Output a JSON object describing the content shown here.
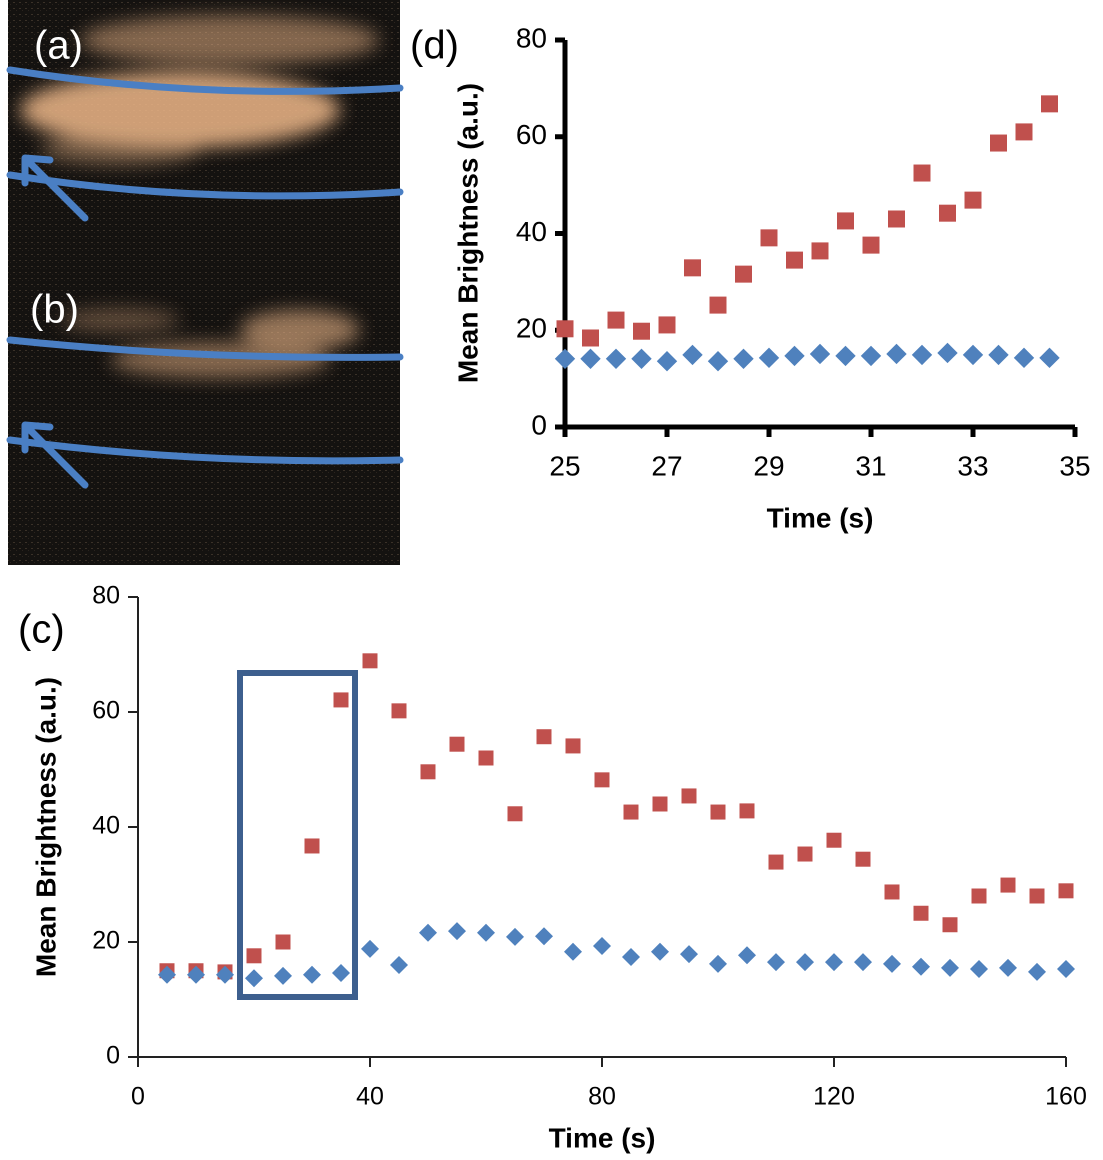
{
  "image": {
    "labels": [
      "(a)",
      "(b)"
    ]
  },
  "chart_data": [
    {
      "type": "scatter",
      "label": "(d)",
      "xlabel": "Time (s)",
      "ylabel": "Mean Brightness (a.u.)",
      "xlim": [
        25,
        35
      ],
      "xticks": [
        25,
        27,
        29,
        31,
        33,
        35
      ],
      "ylim": [
        0,
        80
      ],
      "yticks": [
        0,
        20,
        40,
        60,
        80
      ],
      "series": [
        {
          "color": "#c0504d",
          "marker": "square",
          "x": [
            25,
            25.5,
            26,
            26.5,
            27,
            27.5,
            28,
            28.5,
            29,
            29.5,
            30,
            30.5,
            31,
            31.5,
            32,
            32.5,
            33,
            33.5,
            34,
            34.5
          ],
          "values": [
            20.3,
            18.4,
            22.1,
            19.8,
            21.1,
            32.9,
            25.2,
            31.6,
            39.1,
            34.5,
            36.4,
            42.6,
            37.6,
            43,
            52.5,
            44.2,
            46.9,
            58.7,
            61,
            66.8
          ]
        },
        {
          "color": "#4f81bd",
          "marker": "diamond",
          "x": [
            25,
            25.5,
            26,
            26.5,
            27,
            27.5,
            28,
            28.5,
            29,
            29.5,
            30,
            30.5,
            31,
            31.5,
            32,
            32.5,
            33,
            33.5,
            34,
            34.5
          ],
          "values": [
            14.1,
            14.1,
            14.1,
            14.1,
            13.6,
            14.9,
            13.6,
            14.1,
            14.3,
            14.7,
            15.1,
            14.7,
            14.7,
            15.1,
            14.9,
            15.3,
            14.9,
            14.9,
            14.3,
            14.3
          ]
        }
      ]
    },
    {
      "type": "scatter",
      "label": "(c)",
      "xlabel": "Time (s)",
      "ylabel": "Mean Brightness (a.u.)",
      "xlim": [
        0,
        160
      ],
      "xticks": [
        0,
        40,
        80,
        120,
        160
      ],
      "ylim": [
        0,
        80
      ],
      "yticks": [
        0,
        20,
        40,
        60,
        80
      ],
      "series": [
        {
          "color": "#c0504d",
          "marker": "square",
          "x": [
            5,
            10,
            15,
            20,
            25,
            30,
            35,
            40,
            45,
            50,
            55,
            60,
            65,
            70,
            75,
            80,
            85,
            90,
            95,
            100,
            105,
            110,
            115,
            120,
            125,
            130,
            135,
            140,
            145,
            150,
            155,
            160
          ],
          "values": [
            15,
            15,
            14.8,
            17.6,
            20,
            36.7,
            62.1,
            68.9,
            60.2,
            49.6,
            54.4,
            52,
            42.3,
            55.7,
            54.1,
            48.2,
            42.6,
            44,
            45.4,
            42.6,
            42.8,
            33.9,
            35.3,
            37.7,
            34.4,
            28.7,
            25,
            23,
            28,
            29.9,
            28,
            28.9
          ]
        },
        {
          "color": "#4f81bd",
          "marker": "diamond",
          "x": [
            5,
            10,
            15,
            20,
            25,
            30,
            35,
            40,
            45,
            50,
            55,
            60,
            65,
            70,
            75,
            80,
            85,
            90,
            95,
            100,
            105,
            110,
            115,
            120,
            125,
            130,
            135,
            140,
            145,
            150,
            155,
            160
          ],
          "values": [
            14.3,
            14.3,
            14.3,
            13.7,
            14.1,
            14.3,
            14.6,
            18.8,
            16,
            21.6,
            21.9,
            21.6,
            20.9,
            21,
            18.3,
            19.3,
            17.4,
            18.3,
            17.9,
            16.2,
            17.7,
            16.5,
            16.5,
            16.5,
            16.5,
            16.2,
            15.7,
            15.5,
            15.3,
            15.5,
            14.8,
            15.3
          ]
        }
      ]
    }
  ]
}
